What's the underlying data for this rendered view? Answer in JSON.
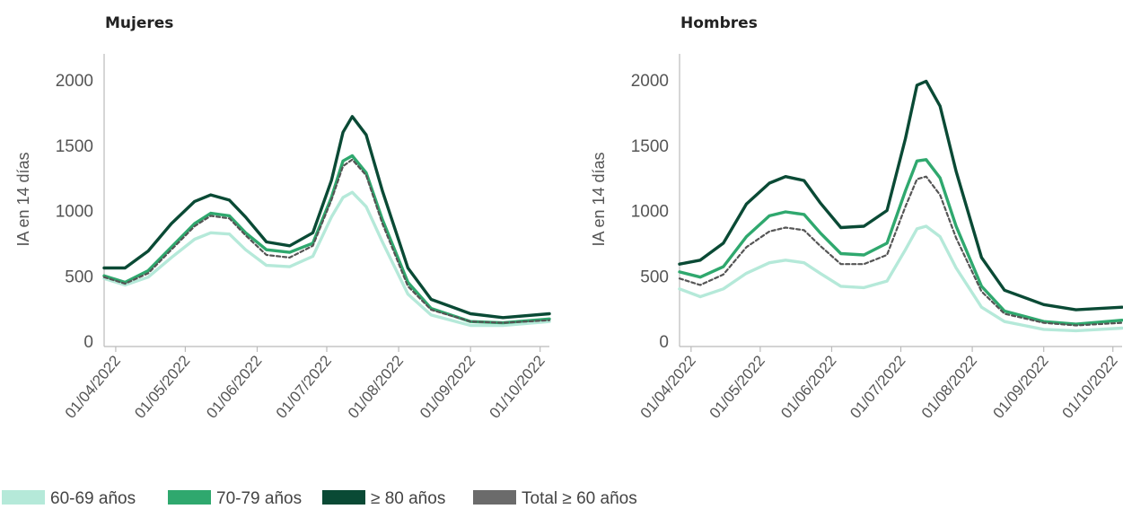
{
  "chart_data": [
    {
      "type": "line",
      "title": "Mujeres",
      "xlabel": "",
      "ylabel": "IA en 14 días",
      "ylim": [
        0,
        2200
      ],
      "yticks": [
        0,
        500,
        1000,
        1500,
        2000
      ],
      "xlim": [
        "2022-03-27",
        "2022-10-05"
      ],
      "xticks": [
        "2022-04-01",
        "2022-05-01",
        "2022-06-01",
        "2022-07-01",
        "2022-08-01",
        "2022-09-01",
        "2022-10-01"
      ],
      "xtick_labels": [
        "01/04/2022",
        "01/05/2022",
        "01/06/2022",
        "01/07/2022",
        "01/08/2022",
        "01/09/2022",
        "01/10/2022"
      ],
      "grid": false,
      "series": [
        {
          "name": "60-69 años",
          "color": "#b5e9d9",
          "x": [
            "2022-03-27",
            "2022-04-05",
            "2022-04-15",
            "2022-04-25",
            "2022-05-05",
            "2022-05-12",
            "2022-05-20",
            "2022-05-27",
            "2022-06-05",
            "2022-06-15",
            "2022-06-25",
            "2022-07-03",
            "2022-07-08",
            "2022-07-12",
            "2022-07-18",
            "2022-07-25",
            "2022-08-05",
            "2022-08-15",
            "2022-09-01",
            "2022-09-15",
            "2022-10-05"
          ],
          "y": [
            480,
            430,
            490,
            640,
            780,
            830,
            820,
            700,
            580,
            570,
            650,
            950,
            1100,
            1140,
            1030,
            760,
            360,
            200,
            120,
            120,
            150
          ]
        },
        {
          "name": "70-79 años",
          "color": "#2fa86e",
          "x": [
            "2022-03-27",
            "2022-04-05",
            "2022-04-15",
            "2022-04-25",
            "2022-05-05",
            "2022-05-12",
            "2022-05-20",
            "2022-05-27",
            "2022-06-05",
            "2022-06-15",
            "2022-06-25",
            "2022-07-03",
            "2022-07-08",
            "2022-07-12",
            "2022-07-18",
            "2022-07-25",
            "2022-08-05",
            "2022-08-15",
            "2022-09-01",
            "2022-09-15",
            "2022-10-05"
          ],
          "y": [
            500,
            450,
            540,
            720,
            900,
            980,
            960,
            830,
            700,
            680,
            750,
            1100,
            1380,
            1420,
            1290,
            930,
            450,
            250,
            150,
            140,
            170
          ]
        },
        {
          "name": "≥ 80 años",
          "color": "#0a4a35",
          "x": [
            "2022-03-27",
            "2022-04-05",
            "2022-04-15",
            "2022-04-25",
            "2022-05-05",
            "2022-05-12",
            "2022-05-20",
            "2022-05-27",
            "2022-06-05",
            "2022-06-15",
            "2022-06-25",
            "2022-07-03",
            "2022-07-08",
            "2022-07-12",
            "2022-07-18",
            "2022-07-25",
            "2022-08-05",
            "2022-08-15",
            "2022-09-01",
            "2022-09-15",
            "2022-10-05"
          ],
          "y": [
            560,
            560,
            690,
            900,
            1070,
            1120,
            1080,
            950,
            760,
            730,
            830,
            1230,
            1600,
            1720,
            1580,
            1150,
            560,
            320,
            210,
            180,
            210
          ]
        },
        {
          "name": "Total ≥ 60 años",
          "color": "#555555",
          "dashed": true,
          "x": [
            "2022-03-27",
            "2022-04-05",
            "2022-04-15",
            "2022-04-25",
            "2022-05-05",
            "2022-05-12",
            "2022-05-20",
            "2022-05-27",
            "2022-06-05",
            "2022-06-15",
            "2022-06-25",
            "2022-07-03",
            "2022-07-08",
            "2022-07-12",
            "2022-07-18",
            "2022-07-25",
            "2022-08-05",
            "2022-08-15",
            "2022-09-01",
            "2022-09-15",
            "2022-10-05"
          ],
          "y": [
            490,
            440,
            520,
            700,
            880,
            960,
            940,
            810,
            660,
            640,
            730,
            1080,
            1340,
            1390,
            1270,
            900,
            420,
            240,
            150,
            140,
            160
          ]
        }
      ]
    },
    {
      "type": "line",
      "title": "Hombres",
      "xlabel": "",
      "ylabel": "IA en 14 días",
      "ylim": [
        0,
        2200
      ],
      "yticks": [
        0,
        500,
        1000,
        1500,
        2000
      ],
      "xlim": [
        "2022-03-27",
        "2022-10-05"
      ],
      "xticks": [
        "2022-04-01",
        "2022-05-01",
        "2022-06-01",
        "2022-07-01",
        "2022-08-01",
        "2022-09-01",
        "2022-10-01"
      ],
      "xtick_labels": [
        "01/04/2022",
        "01/05/2022",
        "01/06/2022",
        "01/07/2022",
        "01/08/2022",
        "01/09/2022",
        "01/10/2022"
      ],
      "grid": false,
      "series": [
        {
          "name": "60-69 años",
          "color": "#b5e9d9",
          "x": [
            "2022-03-27",
            "2022-04-05",
            "2022-04-15",
            "2022-04-25",
            "2022-05-05",
            "2022-05-12",
            "2022-05-20",
            "2022-05-27",
            "2022-06-05",
            "2022-06-15",
            "2022-06-25",
            "2022-07-03",
            "2022-07-08",
            "2022-07-12",
            "2022-07-18",
            "2022-07-25",
            "2022-08-05",
            "2022-08-15",
            "2022-09-01",
            "2022-09-15",
            "2022-10-05"
          ],
          "y": [
            400,
            340,
            400,
            520,
            600,
            620,
            600,
            520,
            420,
            410,
            460,
            700,
            860,
            880,
            800,
            560,
            260,
            150,
            90,
            80,
            100
          ]
        },
        {
          "name": "70-79 años",
          "color": "#2fa86e",
          "x": [
            "2022-03-27",
            "2022-04-05",
            "2022-04-15",
            "2022-04-25",
            "2022-05-05",
            "2022-05-12",
            "2022-05-20",
            "2022-05-27",
            "2022-06-05",
            "2022-06-15",
            "2022-06-25",
            "2022-07-03",
            "2022-07-08",
            "2022-07-12",
            "2022-07-18",
            "2022-07-25",
            "2022-08-05",
            "2022-08-15",
            "2022-09-01",
            "2022-09-15",
            "2022-10-05"
          ],
          "y": [
            530,
            490,
            570,
            800,
            960,
            990,
            970,
            830,
            670,
            660,
            750,
            1150,
            1380,
            1390,
            1250,
            880,
            420,
            230,
            150,
            130,
            160
          ]
        },
        {
          "name": "≥ 80 años",
          "color": "#0a4a35",
          "x": [
            "2022-03-27",
            "2022-04-05",
            "2022-04-15",
            "2022-04-25",
            "2022-05-05",
            "2022-05-12",
            "2022-05-20",
            "2022-05-27",
            "2022-06-05",
            "2022-06-15",
            "2022-06-25",
            "2022-07-03",
            "2022-07-08",
            "2022-07-12",
            "2022-07-18",
            "2022-07-25",
            "2022-08-05",
            "2022-08-15",
            "2022-09-01",
            "2022-09-15",
            "2022-10-05"
          ],
          "y": [
            590,
            620,
            750,
            1050,
            1210,
            1260,
            1230,
            1060,
            870,
            880,
            1000,
            1550,
            1960,
            1990,
            1800,
            1300,
            640,
            390,
            280,
            240,
            260
          ]
        },
        {
          "name": "Total ≥ 60 años",
          "color": "#555555",
          "dashed": true,
          "x": [
            "2022-03-27",
            "2022-04-05",
            "2022-04-15",
            "2022-04-25",
            "2022-05-05",
            "2022-05-12",
            "2022-05-20",
            "2022-05-27",
            "2022-06-05",
            "2022-06-15",
            "2022-06-25",
            "2022-07-03",
            "2022-07-08",
            "2022-07-12",
            "2022-07-18",
            "2022-07-25",
            "2022-08-05",
            "2022-08-15",
            "2022-09-01",
            "2022-09-15",
            "2022-10-05"
          ],
          "y": [
            480,
            430,
            510,
            720,
            840,
            870,
            850,
            730,
            590,
            590,
            660,
            1030,
            1240,
            1260,
            1120,
            790,
            380,
            210,
            140,
            120,
            140
          ]
        }
      ]
    }
  ],
  "legend": {
    "placement": "bottom-left",
    "items": [
      {
        "label": "60-69 años",
        "color": "#b5e9d9"
      },
      {
        "label": "70-79 años",
        "color": "#2fa86e"
      },
      {
        "label": "≥ 80 años",
        "color": "#0a4a35"
      },
      {
        "label": "Total ≥ 60 años",
        "color": "#6b6b6b"
      }
    ]
  }
}
